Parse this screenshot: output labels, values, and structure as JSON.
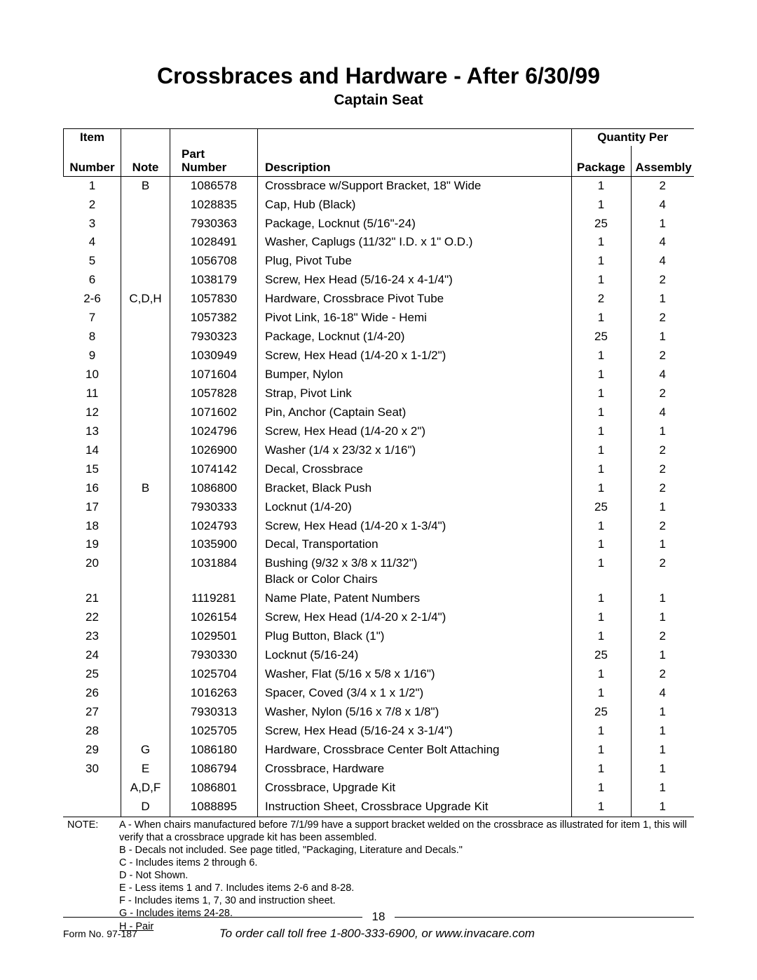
{
  "title": "Crossbraces and Hardware - After 6/30/99",
  "subtitle": "Captain Seat",
  "headers": {
    "item": "Item",
    "number": "Number",
    "note": "Note",
    "part": "Part Number",
    "desc": "Description",
    "qty": "Quantity Per",
    "pkg": "Package",
    "asm": "Assembly"
  },
  "rows": [
    {
      "item": "1",
      "note": "B",
      "part": "1086578",
      "desc": "Crossbrace w/Support Bracket, 18\" Wide",
      "pkg": "1",
      "asm": "2"
    },
    {
      "item": "2",
      "note": "",
      "part": "1028835",
      "desc": "Cap, Hub (Black)",
      "pkg": "1",
      "asm": "4"
    },
    {
      "item": "3",
      "note": "",
      "part": "7930363",
      "desc": "Package, Locknut (5/16\"-24)",
      "pkg": "25",
      "asm": "1"
    },
    {
      "item": "4",
      "note": "",
      "part": "1028491",
      "desc": "Washer, Caplugs (11/32\" I.D. x 1\" O.D.)",
      "pkg": "1",
      "asm": "4"
    },
    {
      "item": "5",
      "note": "",
      "part": "1056708",
      "desc": "Plug, Pivot Tube",
      "pkg": "1",
      "asm": "4"
    },
    {
      "item": "6",
      "note": "",
      "part": "1038179",
      "desc": "Screw, Hex Head (5/16-24 x 4-1/4\")",
      "pkg": "1",
      "asm": "2"
    },
    {
      "item": "2-6",
      "note": "C,D,H",
      "part": "1057830",
      "desc": "Hardware, Crossbrace Pivot Tube",
      "pkg": "2",
      "asm": "1"
    },
    {
      "item": "7",
      "note": "",
      "part": "1057382",
      "desc": "Pivot Link, 16-18\" Wide - Hemi",
      "pkg": "1",
      "asm": "2"
    },
    {
      "item": "8",
      "note": "",
      "part": "7930323",
      "desc": "Package, Locknut (1/4-20)",
      "pkg": "25",
      "asm": "1"
    },
    {
      "item": "9",
      "note": "",
      "part": "1030949",
      "desc": "Screw, Hex Head (1/4-20 x 1-1/2\")",
      "pkg": "1",
      "asm": "2"
    },
    {
      "item": "10",
      "note": "",
      "part": "1071604",
      "desc": "Bumper, Nylon",
      "pkg": "1",
      "asm": "4"
    },
    {
      "item": "11",
      "note": "",
      "part": "1057828",
      "desc": "Strap, Pivot Link",
      "pkg": "1",
      "asm": "2"
    },
    {
      "item": "12",
      "note": "",
      "part": "1071602",
      "desc": "Pin, Anchor (Captain Seat)",
      "pkg": "1",
      "asm": "4"
    },
    {
      "item": "13",
      "note": "",
      "part": "1024796",
      "desc": "Screw, Hex Head (1/4-20 x 2\")",
      "pkg": "1",
      "asm": "1"
    },
    {
      "item": "14",
      "note": "",
      "part": "1026900",
      "desc": "Washer (1/4 x 23/32 x 1/16\")",
      "pkg": "1",
      "asm": "2"
    },
    {
      "item": "15",
      "note": "",
      "part": "1074142",
      "desc": "Decal, Crossbrace",
      "pkg": "1",
      "asm": "2"
    },
    {
      "item": "16",
      "note": "B",
      "part": "1086800",
      "desc": "Bracket, Black Push",
      "pkg": "1",
      "asm": "2"
    },
    {
      "item": "17",
      "note": "",
      "part": "7930333",
      "desc": "Locknut (1/4-20)",
      "pkg": "25",
      "asm": "1"
    },
    {
      "item": "18",
      "note": "",
      "part": "1024793",
      "desc": "Screw, Hex Head (1/4-20 x 1-3/4\")",
      "pkg": "1",
      "asm": "2"
    },
    {
      "item": "19",
      "note": "",
      "part": "1035900",
      "desc": "Decal, Transportation",
      "pkg": "1",
      "asm": "1"
    },
    {
      "item": "20",
      "note": "",
      "part": "1031884",
      "desc": "Bushing  (9/32 x 3/8 x 11/32\")\nBlack or Color Chairs",
      "pkg": "1",
      "asm": "2"
    },
    {
      "item": "21",
      "note": "",
      "part": "1119281",
      "desc": "Name Plate, Patent Numbers",
      "pkg": "1",
      "asm": "1"
    },
    {
      "item": "22",
      "note": "",
      "part": "1026154",
      "desc": "Screw, Hex Head (1/4-20 x 2-1/4\")",
      "pkg": "1",
      "asm": "1"
    },
    {
      "item": "23",
      "note": "",
      "part": "1029501",
      "desc": "Plug Button, Black (1\")",
      "pkg": "1",
      "asm": "2"
    },
    {
      "item": "24",
      "note": "",
      "part": "7930330",
      "desc": "Locknut (5/16-24)",
      "pkg": "25",
      "asm": "1"
    },
    {
      "item": "25",
      "note": "",
      "part": "1025704",
      "desc": "Washer, Flat (5/16 x 5/8 x 1/16\")",
      "pkg": "1",
      "asm": "2"
    },
    {
      "item": "26",
      "note": "",
      "part": "1016263",
      "desc": "Spacer, Coved (3/4 x 1 x 1/2\")",
      "pkg": "1",
      "asm": "4"
    },
    {
      "item": "27",
      "note": "",
      "part": "7930313",
      "desc": "Washer, Nylon (5/16 x 7/8 x 1/8\")",
      "pkg": "25",
      "asm": "1"
    },
    {
      "item": "28",
      "note": "",
      "part": "1025705",
      "desc": "Screw, Hex Head (5/16-24 x 3-1/4\")",
      "pkg": "1",
      "asm": "1"
    },
    {
      "item": "29",
      "note": "G",
      "part": "1086180",
      "desc": "Hardware, Crossbrace Center Bolt Attaching",
      "pkg": "1",
      "asm": "1"
    },
    {
      "item": "30",
      "note": "E",
      "part": "1086794",
      "desc": "Crossbrace, Hardware",
      "pkg": "1",
      "asm": "1"
    },
    {
      "item": "",
      "note": "A,D,F",
      "part": "1086801",
      "desc": "Crossbrace, Upgrade Kit",
      "pkg": "1",
      "asm": "1"
    },
    {
      "item": "",
      "note": "D",
      "part": "1088895",
      "desc": "Instruction Sheet, Crossbrace Upgrade Kit",
      "pkg": "1",
      "asm": "1"
    }
  ],
  "notes": {
    "label": "NOTE:",
    "lines": [
      "A - When chairs manufactured before 7/1/99 have a support bracket welded on the crossbrace as illustrated for item 1, this will verify that a crossbrace upgrade kit has been assembled.",
      "B - Decals not included.  See page titled, \"Packaging, Literature and Decals.\"",
      "C - Includes items 2 through 6.",
      "D - Not Shown.",
      "E - Less items 1 and 7.  Includes items 2-6 and 8-28.",
      "F - Includes items 1, 7, 30 and instruction sheet.",
      "G - Includes items 24-28.",
      "H - Pair"
    ]
  },
  "page_number": "18",
  "form_no": "Form No. 97-187",
  "order_line": "To order call toll free 1-800-333-6900, or www.invacare.com"
}
